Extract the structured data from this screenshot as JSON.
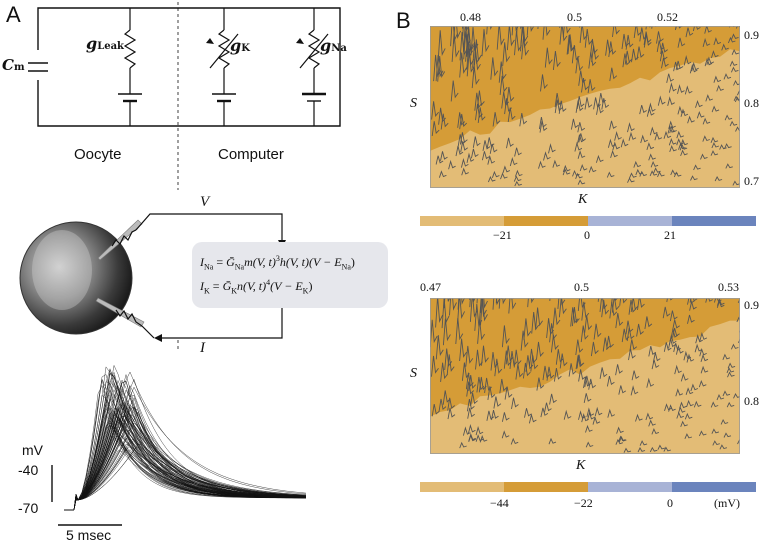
{
  "panel_a": {
    "letter": "A",
    "cm_label": "C",
    "cm_sub": "m",
    "gleak_label": "g",
    "gleak_sub": "Leak",
    "gk_label": "g",
    "gk_sub": "K",
    "gna_label": "g",
    "gna_sub": "Na",
    "oocyte_label": "Oocyte",
    "computer_label": "Computer",
    "v_label": "V",
    "i_label": "I",
    "eq1": "I_Na = Ḡ_Na m(V, t)³ h(V, t)(V − E_Na)",
    "eq2": "I_K = Ḡ_K n(V, t)⁴ (V − E_K)",
    "eq1_parts": {
      "lhs": "I",
      "lhs_sub": "Na",
      "mid": " = ",
      "g": "Ḡ",
      "g_sub": "Na",
      "rest": "m(V, t)",
      "sup": "3",
      "rest2": "h(V, t)(V − E",
      "e_sub": "Na",
      "close": ")"
    },
    "eq2_parts": {
      "lhs": "I",
      "lhs_sub": "K",
      "mid": " = ",
      "g": "Ḡ",
      "g_sub": "K",
      "rest": "n(V, t)",
      "sup": "4",
      "rest2": "(V − E",
      "e_sub": "K",
      "close": ")"
    },
    "trace_units": "mV",
    "trace_tick_top": "-40",
    "trace_tick_bottom": "-70",
    "scale_label": "5 msec"
  },
  "panel_b": {
    "letter": "B",
    "top": {
      "x_ticks": [
        "0.48",
        "0.5",
        "0.52"
      ],
      "y_ticks": [
        "0.9",
        "0.8",
        "0.7"
      ],
      "xlabel": "K",
      "ylabel": "S",
      "colorbar_ticks": [
        "−21",
        "0",
        "21"
      ],
      "colorbar_colors": [
        "#e3bc76",
        "#d59c37",
        "#a8b3d6",
        "#6b84bd"
      ]
    },
    "bottom": {
      "x_ticks": [
        "0.47",
        "0.5",
        "0.53"
      ],
      "y_ticks": [
        "0.9",
        "0.8"
      ],
      "xlabel": "K",
      "ylabel": "S",
      "colorbar_ticks": [
        "−44",
        "−22",
        "0"
      ],
      "colorbar_unit": "(mV)",
      "colorbar_colors": [
        "#e3bc76",
        "#d59c37",
        "#a8b3d6",
        "#6b84bd"
      ]
    }
  }
}
